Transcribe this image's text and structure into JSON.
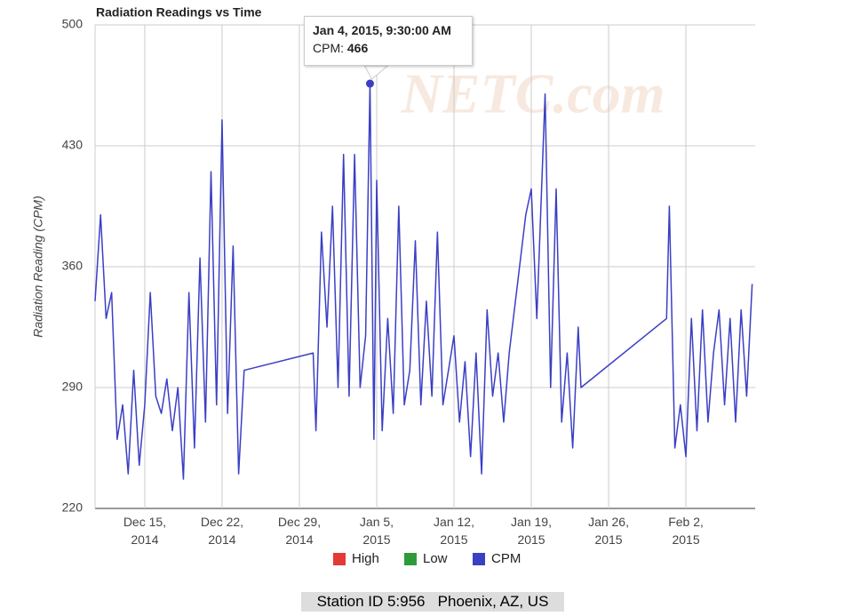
{
  "chart_data": {
    "type": "line",
    "title": "Radiation Readings vs Time",
    "y_label": "Radiation Reading (CPM)",
    "watermark": "NETC.com",
    "footer": "Station ID 5:956   Phoenix, AZ, US",
    "tooltip": {
      "title": "Jan 4, 2015, 9:30:00 AM",
      "label": "CPM:"
    },
    "xlim": [
      "2014-12-10T12:00",
      "2015-02-08T06:30"
    ],
    "xticks": [
      {
        "value": "2014-12-15T00:00",
        "label": "Dec 15, 2014"
      },
      {
        "value": "2014-12-22T00:00",
        "label": "Dec 22, 2014"
      },
      {
        "value": "2014-12-29T00:00",
        "label": "Dec 29, 2014"
      },
      {
        "value": "2015-01-05T00:00",
        "label": "Jan 5, 2015"
      },
      {
        "value": "2015-01-12T00:00",
        "label": "Jan 12, 2015"
      },
      {
        "value": "2015-01-19T00:00",
        "label": "Jan 19, 2015"
      },
      {
        "value": "2015-01-26T00:00",
        "label": "Jan 26, 2015"
      },
      {
        "value": "2015-02-02T00:00",
        "label": "Feb 2, 2015"
      }
    ],
    "ylim": [
      220,
      500
    ],
    "yticks": [
      220,
      290,
      360,
      430,
      500
    ],
    "grid": true,
    "x": [
      "2014-12-10T12:00",
      "2014-12-11T00:00",
      "2014-12-11T12:00",
      "2014-12-12T00:00",
      "2014-12-12T12:00",
      "2014-12-13T00:00",
      "2014-12-13T12:00",
      "2014-12-14T00:00",
      "2014-12-14T12:00",
      "2014-12-15T00:00",
      "2014-12-15T12:00",
      "2014-12-16T00:00",
      "2014-12-16T12:00",
      "2014-12-17T00:00",
      "2014-12-17T12:00",
      "2014-12-18T00:00",
      "2014-12-18T12:00",
      "2014-12-19T00:00",
      "2014-12-19T12:00",
      "2014-12-20T00:00",
      "2014-12-20T12:00",
      "2014-12-21T00:00",
      "2014-12-21T12:00",
      "2014-12-22T00:00",
      "2014-12-22T12:00",
      "2014-12-23T00:00",
      "2014-12-23T12:00",
      "2014-12-24T00:00",
      "2014-12-30T06:00",
      "2014-12-30T12:00",
      "2014-12-31T00:00",
      "2014-12-31T12:00",
      "2015-01-01T00:00",
      "2015-01-01T12:00",
      "2015-01-02T00:00",
      "2015-01-02T12:00",
      "2015-01-03T00:00",
      "2015-01-03T12:00",
      "2015-01-04T00:00",
      "2015-01-04T09:30",
      "2015-01-04T18:00",
      "2015-01-05T00:00",
      "2015-01-05T12:00",
      "2015-01-06T00:00",
      "2015-01-06T12:00",
      "2015-01-07T00:00",
      "2015-01-07T12:00",
      "2015-01-08T00:00",
      "2015-01-08T12:00",
      "2015-01-09T00:00",
      "2015-01-09T12:00",
      "2015-01-10T00:00",
      "2015-01-10T12:00",
      "2015-01-11T00:00",
      "2015-01-11T12:00",
      "2015-01-12T00:00",
      "2015-01-12T12:00",
      "2015-01-13T00:00",
      "2015-01-13T12:00",
      "2015-01-14T00:00",
      "2015-01-14T12:00",
      "2015-01-15T00:00",
      "2015-01-15T12:00",
      "2015-01-16T00:00",
      "2015-01-16T12:00",
      "2015-01-17T00:00",
      "2015-01-18T12:00",
      "2015-01-19T00:00",
      "2015-01-19T12:00",
      "2015-01-20T06:00",
      "2015-01-20T18:00",
      "2015-01-21T06:00",
      "2015-01-21T18:00",
      "2015-01-22T06:00",
      "2015-01-22T18:00",
      "2015-01-23T06:00",
      "2015-01-23T12:00",
      "2015-01-31T06:00",
      "2015-01-31T12:00",
      "2015-02-01T00:00",
      "2015-02-01T12:00",
      "2015-02-02T00:00",
      "2015-02-02T12:00",
      "2015-02-03T00:00",
      "2015-02-03T12:00",
      "2015-02-04T00:00",
      "2015-02-04T12:00",
      "2015-02-05T00:00",
      "2015-02-05T12:00",
      "2015-02-06T00:00",
      "2015-02-06T12:00",
      "2015-02-07T00:00",
      "2015-02-07T12:00",
      "2015-02-08T00:00"
    ],
    "series": [
      {
        "name": "High",
        "color": "#e53935"
      },
      {
        "name": "Low",
        "color": "#2e9b3a"
      },
      {
        "name": "CPM",
        "color": "#3a3fc4",
        "values": [
          340,
          390,
          330,
          345,
          260,
          280,
          240,
          300,
          245,
          280,
          345,
          285,
          275,
          295,
          265,
          290,
          237,
          345,
          255,
          365,
          270,
          415,
          280,
          445,
          275,
          372,
          240,
          300,
          310,
          265,
          380,
          325,
          395,
          290,
          425,
          285,
          425,
          290,
          320,
          466,
          260,
          410,
          265,
          330,
          275,
          395,
          280,
          300,
          375,
          280,
          340,
          285,
          380,
          280,
          300,
          320,
          270,
          305,
          250,
          310,
          240,
          335,
          285,
          310,
          270,
          310,
          390,
          405,
          330,
          460,
          290,
          405,
          270,
          310,
          255,
          325,
          290,
          330,
          395,
          255,
          280,
          250,
          330,
          265,
          335,
          270,
          310,
          335,
          280,
          330,
          270,
          335,
          285,
          350
        ]
      }
    ]
  }
}
